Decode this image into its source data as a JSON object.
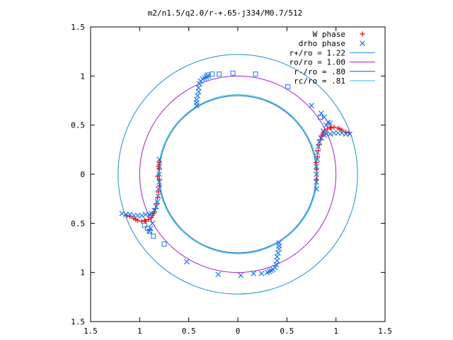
{
  "chart_data": {
    "type": "scatter",
    "title": "m2/n1.5/q2.0/r-+.65-j334/M0.7/512",
    "xlim": [
      -1.5,
      1.5
    ],
    "ylim": [
      -1.5,
      1.5
    ],
    "x_ticks": [
      -1.5,
      -1,
      -0.5,
      0,
      0.5,
      1,
      1.5
    ],
    "y_ticks": [
      -1.5,
      -1,
      -0.5,
      0,
      0.5,
      1,
      1.5
    ],
    "x_tick_labels": [
      "1.5",
      "1",
      "0.5",
      "0",
      "0.5",
      "1",
      "1.5"
    ],
    "y_tick_labels": [
      "1.5",
      "1",
      "0.5",
      "0",
      "0.5",
      "1",
      "1.5"
    ],
    "grid": false,
    "legend_position": "top-right",
    "series": [
      {
        "name": "W phase",
        "marker": "plus",
        "color": "#ff0000",
        "points": [
          [
            0.8,
            -0.05
          ],
          [
            0.8,
            0.05
          ],
          [
            0.8,
            0.12
          ],
          [
            0.81,
            0.18
          ],
          [
            0.82,
            0.24
          ],
          [
            0.83,
            0.3
          ],
          [
            0.84,
            0.35
          ],
          [
            0.86,
            0.4
          ],
          [
            0.88,
            0.44
          ],
          [
            0.91,
            0.46
          ],
          [
            0.94,
            0.48
          ],
          [
            0.98,
            0.48
          ],
          [
            1.02,
            0.47
          ],
          [
            1.06,
            0.45
          ],
          [
            1.1,
            0.43
          ],
          [
            1.13,
            0.42
          ],
          [
            0.85,
            0.38
          ],
          [
            0.87,
            0.42
          ],
          [
            0.95,
            0.47
          ],
          [
            1.04,
            0.46
          ],
          [
            -0.8,
            0.05
          ],
          [
            -0.8,
            -0.05
          ],
          [
            -0.8,
            -0.12
          ],
          [
            -0.81,
            -0.18
          ],
          [
            -0.82,
            -0.24
          ],
          [
            -0.83,
            -0.3
          ],
          [
            -0.84,
            -0.35
          ],
          [
            -0.86,
            -0.4
          ],
          [
            -0.88,
            -0.44
          ],
          [
            -0.91,
            -0.46
          ],
          [
            -0.94,
            -0.48
          ],
          [
            -0.98,
            -0.48
          ],
          [
            -1.02,
            -0.47
          ],
          [
            -1.06,
            -0.45
          ],
          [
            -1.1,
            -0.43
          ],
          [
            -1.13,
            -0.42
          ],
          [
            -0.85,
            -0.38
          ],
          [
            -0.87,
            -0.42
          ],
          [
            -0.95,
            -0.47
          ],
          [
            -1.04,
            -0.46
          ],
          [
            -0.8,
            0.12
          ],
          [
            -0.81,
            0.08
          ],
          [
            -0.82,
            -0.02
          ]
        ]
      },
      {
        "name": "drho phase",
        "marker": "cross",
        "color": "#1f78e8",
        "points": [
          [
            0.8,
            -0.15
          ],
          [
            0.8,
            -0.08
          ],
          [
            0.8,
            0.0
          ],
          [
            0.8,
            0.08
          ],
          [
            0.81,
            0.15
          ],
          [
            0.81,
            0.22
          ],
          [
            0.82,
            0.28
          ],
          [
            0.83,
            0.33
          ],
          [
            0.85,
            0.37
          ],
          [
            0.88,
            0.4
          ],
          [
            0.9,
            0.41
          ],
          [
            0.94,
            0.41
          ],
          [
            0.98,
            0.42
          ],
          [
            1.02,
            0.42
          ],
          [
            1.06,
            0.42
          ],
          [
            1.1,
            0.41
          ],
          [
            1.14,
            0.41
          ],
          [
            0.87,
            0.44
          ],
          [
            0.9,
            0.5
          ],
          [
            0.92,
            0.53
          ],
          [
            0.88,
            0.58
          ],
          [
            0.85,
            0.62
          ],
          [
            0.75,
            0.7
          ],
          [
            0.94,
            0.52
          ],
          [
            -0.8,
            0.15
          ],
          [
            -0.8,
            0.08
          ],
          [
            -0.8,
            0.0
          ],
          [
            -0.8,
            -0.08
          ],
          [
            -0.81,
            -0.15
          ],
          [
            -0.81,
            -0.22
          ],
          [
            -0.82,
            -0.28
          ],
          [
            -0.83,
            -0.33
          ],
          [
            -0.85,
            -0.37
          ],
          [
            -0.88,
            -0.4
          ],
          [
            -0.9,
            -0.41
          ],
          [
            -0.94,
            -0.41
          ],
          [
            -0.98,
            -0.42
          ],
          [
            -1.02,
            -0.42
          ],
          [
            -1.06,
            -0.42
          ],
          [
            -1.1,
            -0.41
          ],
          [
            -1.14,
            -0.41
          ],
          [
            -1.18,
            -0.4
          ],
          [
            -0.87,
            -0.5
          ],
          [
            -0.89,
            -0.55
          ],
          [
            -0.9,
            -0.58
          ],
          [
            -0.52,
            -0.89
          ],
          [
            -0.42,
            0.7
          ],
          [
            -0.42,
            0.73
          ],
          [
            -0.42,
            0.76
          ],
          [
            -0.41,
            0.8
          ],
          [
            -0.4,
            0.84
          ],
          [
            -0.4,
            0.88
          ],
          [
            -0.39,
            0.92
          ],
          [
            -0.38,
            0.95
          ],
          [
            -0.36,
            0.97
          ],
          [
            -0.34,
            0.98
          ],
          [
            -0.32,
            0.99
          ],
          [
            -0.3,
            1.0
          ],
          [
            0.42,
            -0.7
          ],
          [
            0.42,
            -0.73
          ],
          [
            0.42,
            -0.76
          ],
          [
            0.41,
            -0.8
          ],
          [
            0.4,
            -0.84
          ],
          [
            0.4,
            -0.88
          ],
          [
            0.39,
            -0.92
          ],
          [
            0.38,
            -0.95
          ],
          [
            0.36,
            -0.97
          ],
          [
            0.34,
            -0.98
          ],
          [
            0.32,
            -0.99
          ],
          [
            0.3,
            -1.0
          ],
          [
            0.24,
            -1.01
          ],
          [
            0.16,
            -1.01
          ],
          [
            0.03,
            -1.03
          ],
          [
            -0.2,
            -1.02
          ]
        ]
      },
      {
        "name": "",
        "marker": "square",
        "color": "#1f78e8",
        "points": [
          [
            -0.31,
            1.01
          ],
          [
            -0.26,
            1.02
          ],
          [
            -0.19,
            1.02
          ],
          [
            -0.05,
            1.03
          ],
          [
            0.18,
            1.02
          ],
          [
            0.51,
            0.89
          ],
          [
            0.84,
            0.58
          ],
          [
            -0.95,
            -0.52
          ],
          [
            -0.92,
            -0.55
          ],
          [
            -0.9,
            -0.58
          ],
          [
            -0.86,
            -0.63
          ],
          [
            -0.75,
            -0.71
          ]
        ]
      }
    ],
    "circles": [
      {
        "name": "r+/ro = 1.22",
        "radius": 1.22,
        "color": "#1e90c8"
      },
      {
        "name": "ro/ro = 1.00",
        "radius": 1.0,
        "color": "#a020c8"
      },
      {
        "name": "r-/ro = .80",
        "radius": 0.8,
        "color": "#1060c0"
      },
      {
        "name": "rc/ro = .81",
        "radius": 0.81,
        "color": "#20c0d0"
      }
    ]
  }
}
